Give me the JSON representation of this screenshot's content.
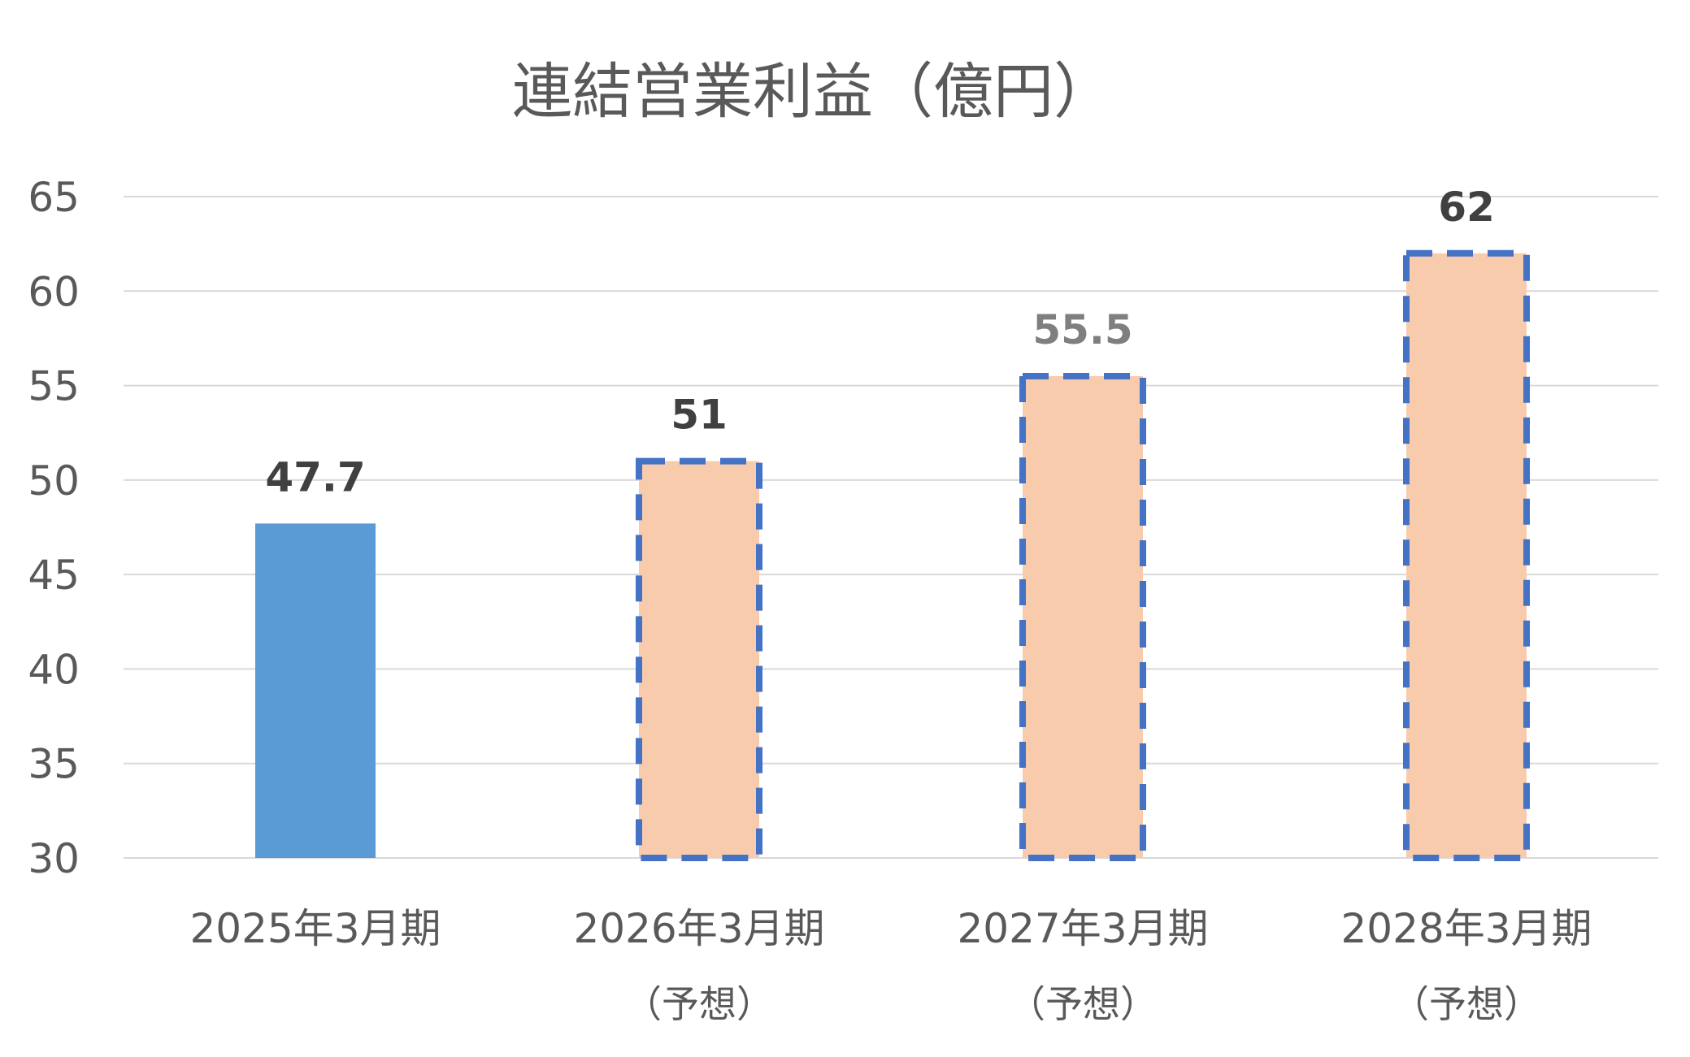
{
  "chart_data": {
    "type": "bar",
    "title": "連結営業利益（億円）",
    "categories": [
      {
        "label": "2025年3月期",
        "sublabel": ""
      },
      {
        "label": "2026年3月期",
        "sublabel": "（予想）"
      },
      {
        "label": "2027年3月期",
        "sublabel": "（予想）"
      },
      {
        "label": "2028年3月期",
        "sublabel": "（予想）"
      }
    ],
    "values": [
      47.7,
      51,
      55.5,
      62
    ],
    "data_labels": [
      "47.7",
      "51",
      "55.5",
      "62"
    ],
    "forecast": [
      false,
      true,
      true,
      true
    ],
    "ylim": [
      30,
      65
    ],
    "yticks": [
      30,
      35,
      40,
      45,
      50,
      55,
      60,
      65
    ],
    "grid": true,
    "legend": "none",
    "colors": {
      "actual_fill": "#5b9bd5",
      "forecast_fill": "#f8cbad",
      "forecast_border": "#4472c4",
      "label_default": "#404040",
      "label_muted": "#7f7f7f"
    },
    "label_colors": [
      "#404040",
      "#404040",
      "#7f7f7f",
      "#404040"
    ]
  }
}
